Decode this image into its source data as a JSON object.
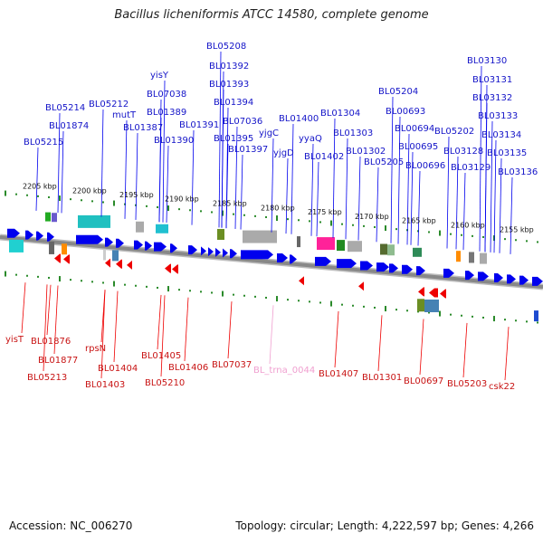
{
  "title": "Bacillus licheniformis ATCC 14580, complete genome",
  "accession": "Accession: NC_006270",
  "summary": "Topology: circular; Length: 4,222,597 bp; Genes: 4,266",
  "colors": {
    "forward_gene": "#0000ee",
    "reverse_gene": "#ee0000",
    "forward_label": "#1414c8",
    "reverse_label": "#c81414",
    "rna_label": "#f0a0d0",
    "backbone": "#888888",
    "tick": "#2a8a2a"
  },
  "scale_labels": [
    "2205 kbp",
    "2200 kbp",
    "2195 kbp",
    "2190 kbp",
    "2185 kbp",
    "2180 kbp",
    "2175 kbp",
    "2170 kbp",
    "2165 kbp",
    "2160 kbp",
    "2155 kbp"
  ],
  "forward_labels": [
    "BL05208",
    "BL01392",
    "BL01393",
    "BL01394",
    "BL07036",
    "BL01395",
    "BL01397",
    "BL01391",
    "yisY",
    "BL07038",
    "BL01389",
    "BL01387",
    "BL01390",
    "BL05212",
    "mutT",
    "BL05214",
    "BL01874",
    "BL05215",
    "BL01400",
    "yjgC",
    "yjgD",
    "yyaQ",
    "BL01402",
    "BL01304",
    "BL01303",
    "BL01302",
    "BL05205",
    "BL05204",
    "BL00693",
    "BL00694",
    "BL00695",
    "BL00696",
    "BL05202",
    "BL03128",
    "BL03129",
    "BL03130",
    "BL03131",
    "BL03132",
    "BL03133",
    "BL03134",
    "BL03135",
    "BL03136"
  ],
  "reverse_labels": [
    "yisT",
    "BL01876",
    "BL01877",
    "BL05213",
    "rpsN",
    "BL01404",
    "BL01403",
    "BL01405",
    "BL05210",
    "BL01406",
    "BL07037",
    "BL_trna_0044",
    "BL01407",
    "BL01301",
    "BL00697",
    "BL05203",
    "csk22"
  ]
}
